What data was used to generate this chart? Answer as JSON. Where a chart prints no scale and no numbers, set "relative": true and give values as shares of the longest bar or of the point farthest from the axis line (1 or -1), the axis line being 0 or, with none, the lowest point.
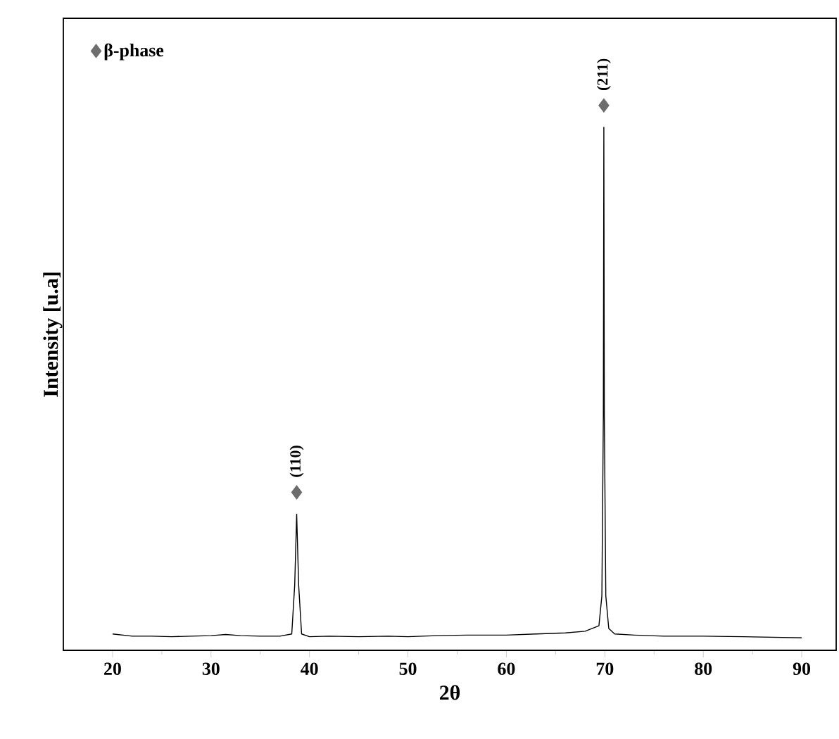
{
  "chart_data": {
    "type": "line",
    "xlabel": "2θ",
    "ylabel": "Intensity [u.a]",
    "relative": true,
    "xlim": [
      15,
      93.5
    ],
    "xticks": [
      20,
      30,
      40,
      50,
      60,
      70,
      80,
      90
    ],
    "tick_labels": "x",
    "legend": "top left",
    "grid": false,
    "series": [
      {
        "color": "#000000",
        "marker": "none",
        "x": [
          20,
          22,
          24,
          26,
          28,
          30,
          31.5,
          33,
          35,
          37,
          38.2,
          38.5,
          38.7,
          38.9,
          39.2,
          40,
          42,
          45,
          48,
          50,
          53,
          56,
          60,
          63,
          66,
          68,
          69.4,
          69.7,
          69.85,
          69.9,
          69.95,
          70.1,
          70.4,
          71,
          73,
          76,
          80,
          84,
          87,
          90
        ],
        "values": [
          0.03,
          0.026,
          0.026,
          0.025,
          0.026,
          0.027,
          0.029,
          0.027,
          0.026,
          0.026,
          0.03,
          0.12,
          0.25,
          0.12,
          0.03,
          0.025,
          0.026,
          0.025,
          0.026,
          0.025,
          0.027,
          0.028,
          0.028,
          0.03,
          0.032,
          0.035,
          0.045,
          0.1,
          0.43,
          0.96,
          0.43,
          0.1,
          0.04,
          0.03,
          0.028,
          0.026,
          0.026,
          0.025,
          0.024,
          0.023
        ]
      },
      {
        "type": "scatter",
        "name": "β-phase",
        "color": "#6d6d6d",
        "marker": "diamond",
        "x": [
          38.7,
          69.9
        ],
        "values": [
          0.29,
          1.0
        ]
      }
    ],
    "annotations": [
      {
        "text": "(110)",
        "x": 38.7,
        "y": 0.29
      },
      {
        "text": "(211)",
        "x": 69.9,
        "y": 1.0
      }
    ]
  }
}
